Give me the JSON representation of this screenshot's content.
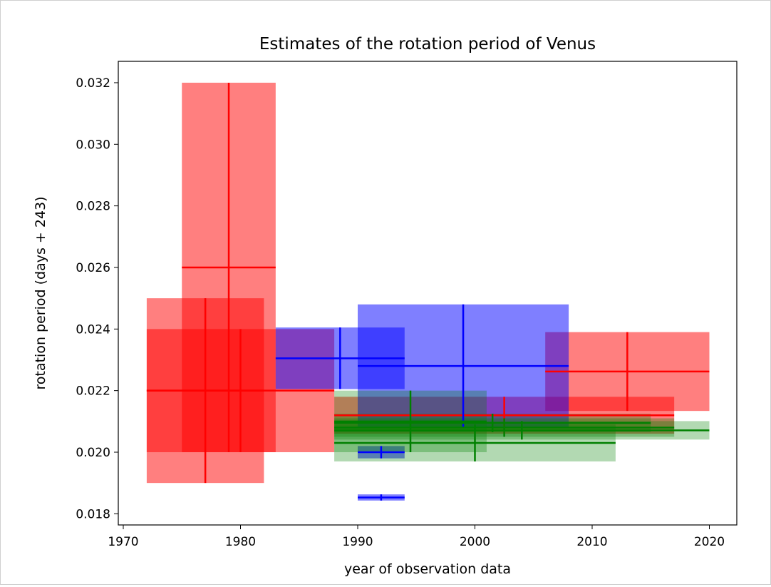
{
  "chart_data": {
    "type": "errorbar-boxes",
    "title": "Estimates of the rotation period of Venus",
    "xlabel": "year of observation data",
    "ylabel": "rotation period (days + 243)",
    "xlim": [
      1969.2,
      2022.7
    ],
    "ylim": [
      0.0177,
      0.0327
    ],
    "xticks": [
      1970,
      1980,
      1990,
      2000,
      2010,
      2020
    ],
    "yticks": [
      "0.018",
      "0.020",
      "0.022",
      "0.024",
      "0.026",
      "0.028",
      "0.030",
      "0.032"
    ],
    "colors": {
      "red": "#ff0000",
      "blue": "#0000ff",
      "green": "#008000"
    },
    "series": [
      {
        "color": "red",
        "alpha": 0.5,
        "points": [
          {
            "start": 1972,
            "end": 1982,
            "center": 1977,
            "value": 0.022,
            "err": 0.003
          },
          {
            "start": 1975,
            "end": 1983,
            "center": 1979,
            "value": 0.026,
            "err": 0.006
          },
          {
            "start": 1972,
            "end": 1988,
            "center": 1980,
            "value": 0.022,
            "err": 0.002
          },
          {
            "start": 2006,
            "end": 2020,
            "center": 2013,
            "value": 0.02262,
            "err": 0.00128
          },
          {
            "start": 1988,
            "end": 2017,
            "center": 2002.5,
            "value": 0.0212,
            "err": 0.0006
          }
        ]
      },
      {
        "color": "blue",
        "alpha": 0.5,
        "points": [
          {
            "start": 1983,
            "end": 1994,
            "center": 1988.5,
            "value": 0.02305,
            "err": 0.001
          },
          {
            "start": 1990,
            "end": 2008,
            "center": 1999,
            "value": 0.0228,
            "err": 0.002
          },
          {
            "start": 1990,
            "end": 1994,
            "center": 1992,
            "value": 0.02,
            "err": 0.0002
          },
          {
            "start": 1990,
            "end": 1994,
            "center": 1992,
            "value": 0.01853,
            "err": 0.0001
          }
        ]
      },
      {
        "color": "green",
        "alpha": 0.3,
        "points": [
          {
            "start": 1988,
            "end": 2001,
            "center": 1994.5,
            "value": 0.021,
            "err": 0.001
          },
          {
            "start": 1988,
            "end": 2012,
            "center": 2000,
            "value": 0.0203,
            "err": 0.0006
          },
          {
            "start": 1988,
            "end": 2020,
            "center": 2004,
            "value": 0.02071,
            "err": 0.0003
          },
          {
            "start": 1988,
            "end": 2015,
            "center": 2001.5,
            "value": 0.02095,
            "err": 0.0003
          },
          {
            "start": 1988,
            "end": 2017,
            "center": 2002.5,
            "value": 0.0208,
            "err": 0.0003
          }
        ]
      }
    ]
  }
}
